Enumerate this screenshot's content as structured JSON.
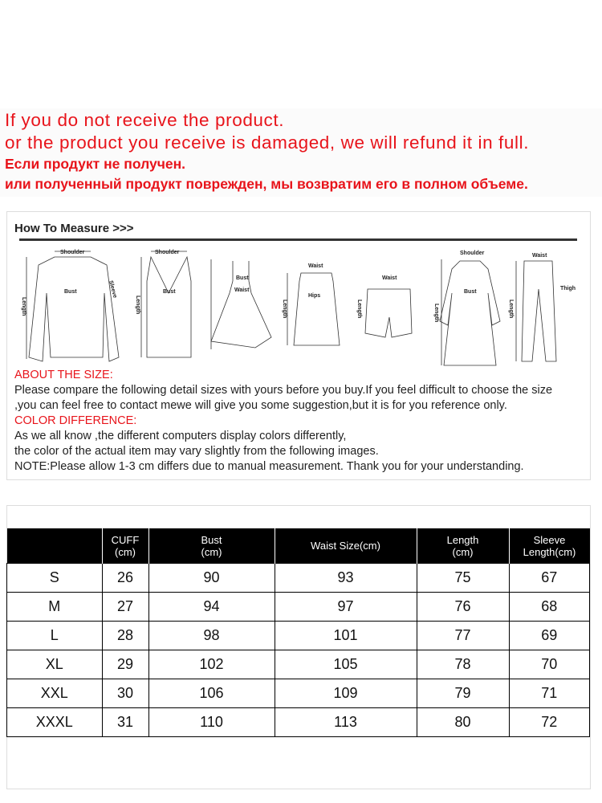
{
  "notice": {
    "line1": "If you do not receive the product.",
    "line2": "or the product you receive is damaged, we will refund it in full.",
    "line3": "Если продукт не получен.",
    "line4": "или полученный продукт поврежден, мы возвратим его в полном объеме."
  },
  "measure": {
    "title": "How To Measure >>>",
    "labels": {
      "shoulder": "Shoulder",
      "bust": "Bust",
      "sleeve": "Sleeve",
      "length": "Length",
      "waist": "Waist",
      "hips": "Hips",
      "thigh": "Thigh"
    }
  },
  "info": {
    "about_heading": "ABOUT THE SIZE:",
    "about_line1": "Please compare the following detail sizes with yours before you buy.If you feel difficult to choose the size",
    "about_line2": ",you can feel free to contact mewe will give you some suggestion,but it is for you reference only.",
    "color_heading": "COLOR DIFFERENCE:",
    "color_line1": "As we all know ,the different computers display colors differently,",
    "color_line2": "the color of the actual item may vary slightly from the following images.",
    "note": "NOTE:Please allow 1-3 cm differs due to manual measurement. Thank you for your understanding."
  },
  "size_table": {
    "headers": [
      "",
      "CUFF\n(cm)",
      "Bust\n(cm)",
      "Waist Size(cm)",
      "Length\n(cm)",
      "Sleeve\nLength(cm)"
    ],
    "rows": [
      [
        "S",
        "26",
        "90",
        "93",
        "75",
        "67"
      ],
      [
        "M",
        "27",
        "94",
        "97",
        "76",
        "68"
      ],
      [
        "L",
        "28",
        "98",
        "101",
        "77",
        "69"
      ],
      [
        "XL",
        "29",
        "102",
        "105",
        "78",
        "70"
      ],
      [
        "XXL",
        "30",
        "106",
        "109",
        "79",
        "71"
      ],
      [
        "XXXL",
        "31",
        "110",
        "113",
        "80",
        "72"
      ]
    ]
  },
  "colors": {
    "notice_red": "#e8141b",
    "header_black": "#000000"
  }
}
